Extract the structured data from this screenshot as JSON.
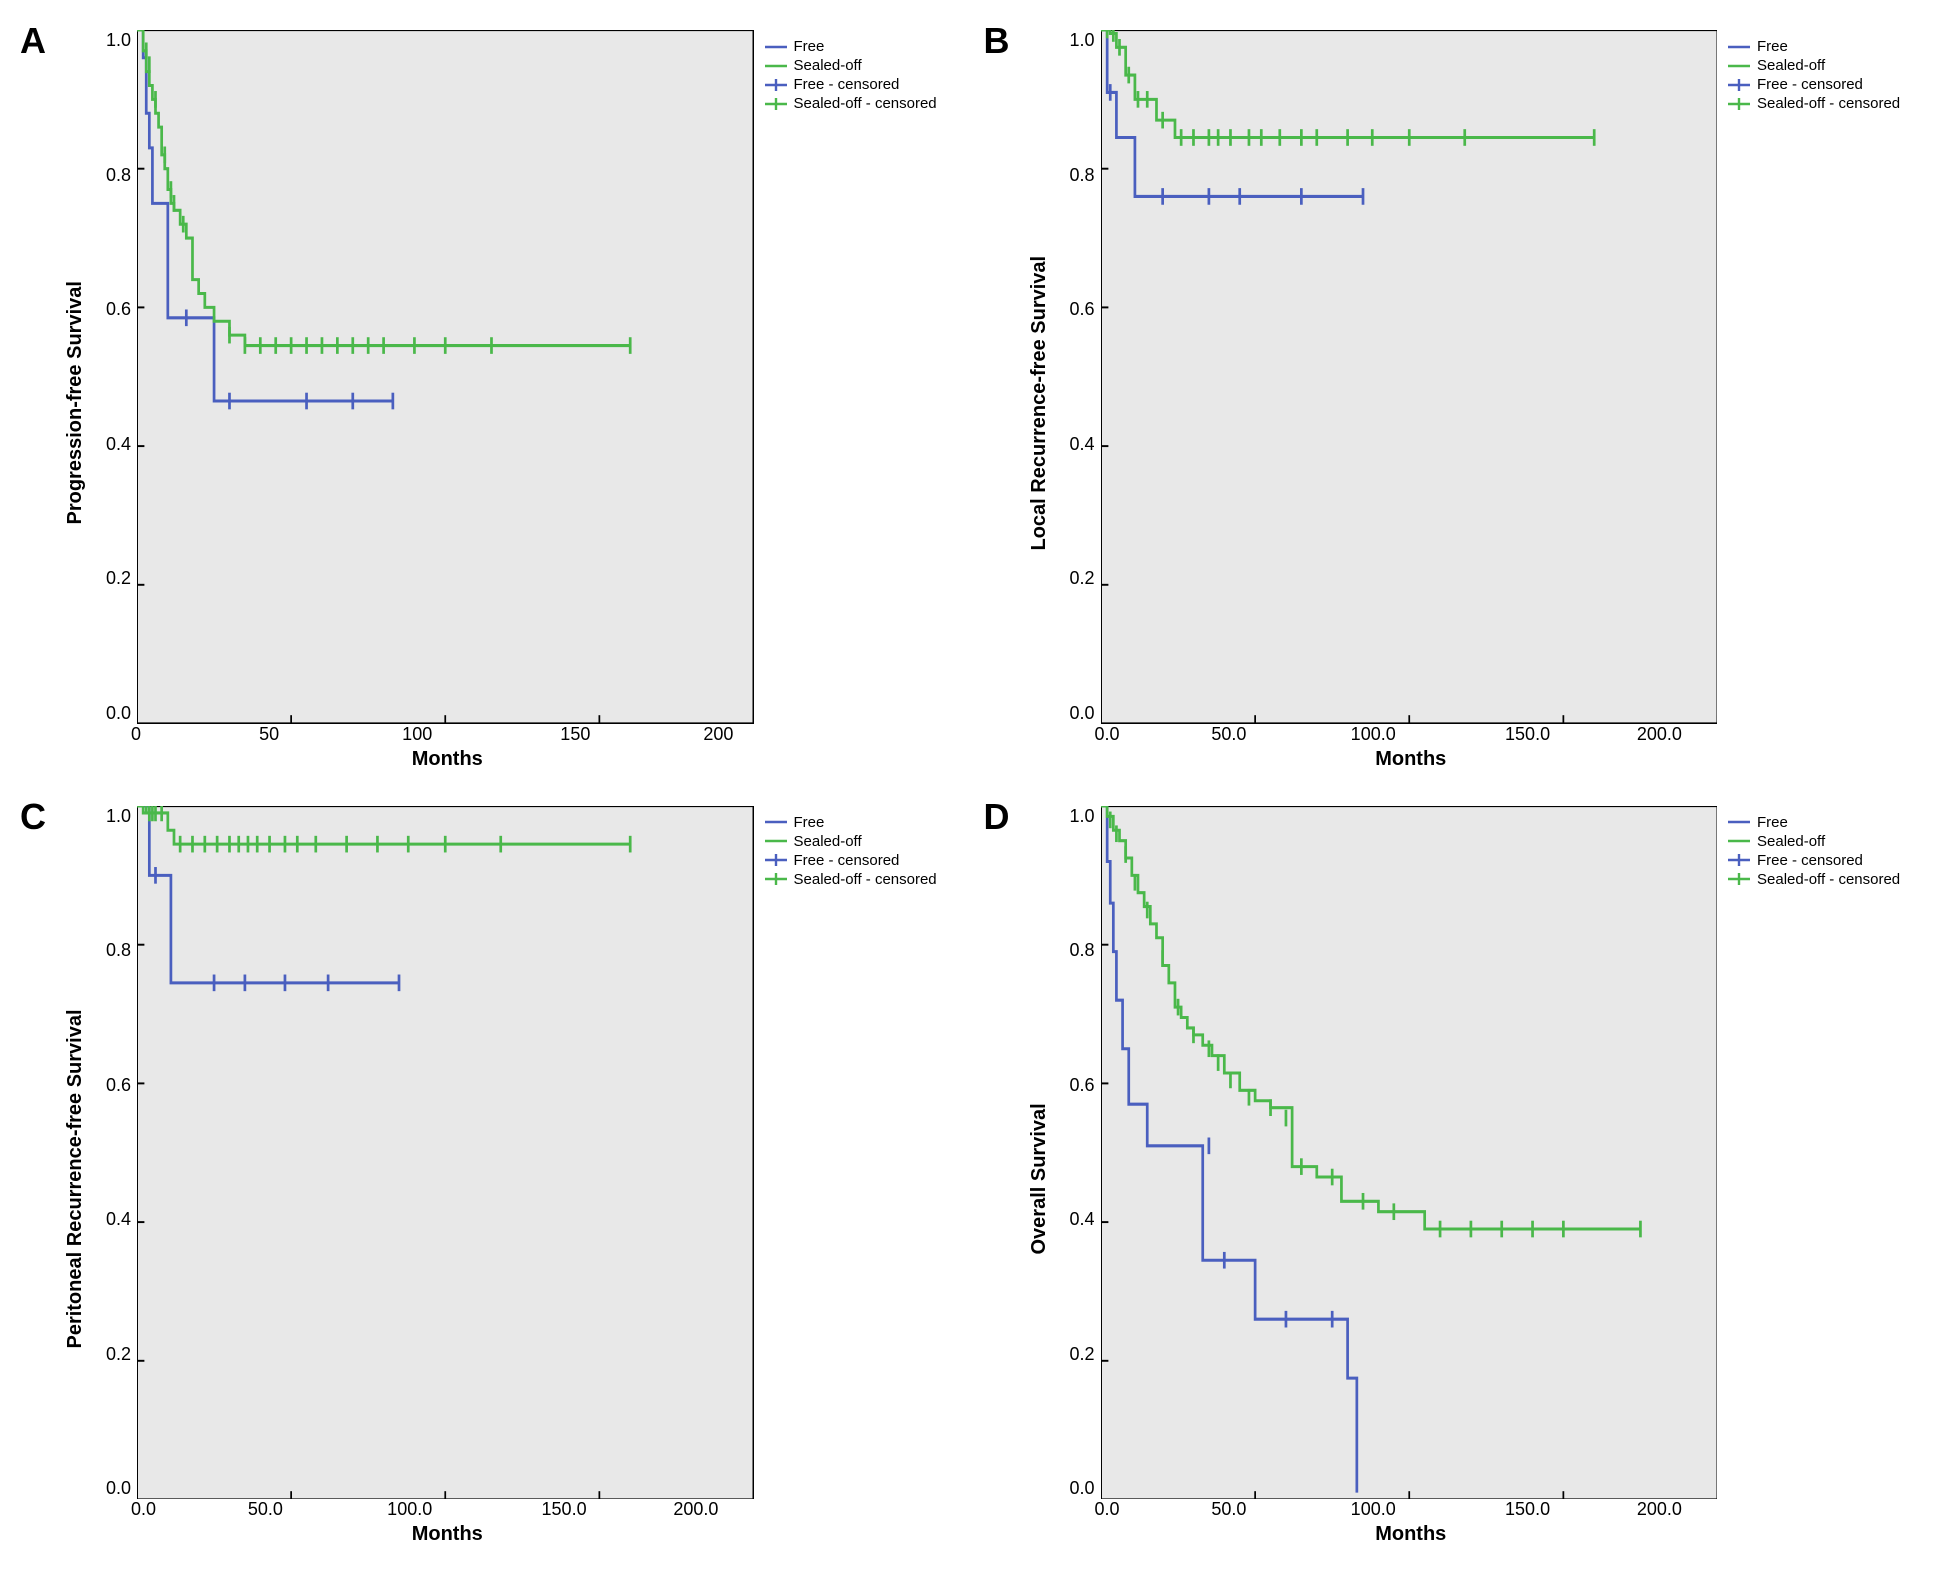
{
  "background_color": "#ffffff",
  "plot_bg": "#e8e8e8",
  "axis_color": "#000000",
  "colors": {
    "free": "#4a5fbf",
    "sealed": "#4ab84a"
  },
  "legend_items": [
    {
      "id": "free",
      "label": "Free",
      "type": "line"
    },
    {
      "id": "sealed",
      "label": "Sealed-off",
      "type": "line"
    },
    {
      "id": "free_c",
      "label": "Free - censored",
      "type": "tick",
      "color_key": "free"
    },
    {
      "id": "sealed_c",
      "label": "Sealed-off - censored",
      "type": "tick",
      "color_key": "sealed"
    }
  ],
  "xlabel": "Months",
  "panels": {
    "A": {
      "letter": "A",
      "ylabel": "Progression-free Survival",
      "xlim": [
        0,
        200
      ],
      "ylim": [
        0.0,
        1.0
      ],
      "xticks": [
        "0",
        "50",
        "100",
        "150",
        "200"
      ],
      "yticks": [
        "1.0",
        "0.8",
        "0.6",
        "0.4",
        "0.2",
        "0.0"
      ],
      "free_steps": [
        [
          0,
          1.0
        ],
        [
          2,
          1.0
        ],
        [
          2,
          0.96
        ],
        [
          3,
          0.88
        ],
        [
          4,
          0.83
        ],
        [
          5,
          0.75
        ],
        [
          10,
          0.75
        ],
        [
          10,
          0.585
        ],
        [
          14,
          0.585
        ],
        [
          14,
          0.585
        ],
        [
          25,
          0.585
        ],
        [
          25,
          0.465
        ],
        [
          83,
          0.465
        ]
      ],
      "sealed_steps": [
        [
          0,
          1.0
        ],
        [
          2,
          0.97
        ],
        [
          3,
          0.94
        ],
        [
          4,
          0.92
        ],
        [
          5,
          0.9
        ],
        [
          6,
          0.88
        ],
        [
          7,
          0.86
        ],
        [
          8,
          0.82
        ],
        [
          9,
          0.8
        ],
        [
          10,
          0.77
        ],
        [
          11,
          0.75
        ],
        [
          12,
          0.74
        ],
        [
          14,
          0.72
        ],
        [
          16,
          0.7
        ],
        [
          18,
          0.64
        ],
        [
          20,
          0.62
        ],
        [
          22,
          0.6
        ],
        [
          25,
          0.58
        ],
        [
          30,
          0.56
        ],
        [
          35,
          0.545
        ],
        [
          160,
          0.545
        ]
      ],
      "free_cens": [
        [
          16,
          0.585
        ],
        [
          30,
          0.465
        ],
        [
          55,
          0.465
        ],
        [
          70,
          0.465
        ],
        [
          83,
          0.465
        ]
      ],
      "sealed_cens": [
        [
          3,
          0.97
        ],
        [
          4,
          0.95
        ],
        [
          6,
          0.9
        ],
        [
          9,
          0.82
        ],
        [
          11,
          0.77
        ],
        [
          12,
          0.75
        ],
        [
          15,
          0.72
        ],
        [
          30,
          0.56
        ],
        [
          35,
          0.545
        ],
        [
          40,
          0.545
        ],
        [
          45,
          0.545
        ],
        [
          50,
          0.545
        ],
        [
          55,
          0.545
        ],
        [
          60,
          0.545
        ],
        [
          65,
          0.545
        ],
        [
          70,
          0.545
        ],
        [
          75,
          0.545
        ],
        [
          80,
          0.545
        ],
        [
          90,
          0.545
        ],
        [
          100,
          0.545
        ],
        [
          115,
          0.545
        ],
        [
          160,
          0.545
        ]
      ]
    },
    "B": {
      "letter": "B",
      "ylabel": "Local Recurrence-free Survival",
      "xlim": [
        0.0,
        200.0
      ],
      "ylim": [
        0.0,
        1.0
      ],
      "xticks": [
        "0.0",
        "50.0",
        "100.0",
        "150.0",
        "200.0"
      ],
      "yticks": [
        "1.0",
        "0.8",
        "0.6",
        "0.4",
        "0.2",
        "0.0"
      ],
      "free_steps": [
        [
          0,
          1.0
        ],
        [
          2,
          1.0
        ],
        [
          2,
          0.91
        ],
        [
          5,
          0.91
        ],
        [
          5,
          0.845
        ],
        [
          11,
          0.845
        ],
        [
          11,
          0.76
        ],
        [
          85,
          0.76
        ]
      ],
      "sealed_steps": [
        [
          0,
          1.0
        ],
        [
          3,
          0.995
        ],
        [
          5,
          0.995
        ],
        [
          5,
          0.975
        ],
        [
          8,
          0.975
        ],
        [
          8,
          0.935
        ],
        [
          11,
          0.935
        ],
        [
          11,
          0.9
        ],
        [
          18,
          0.9
        ],
        [
          18,
          0.87
        ],
        [
          24,
          0.87
        ],
        [
          24,
          0.845
        ],
        [
          160,
          0.845
        ]
      ],
      "free_cens": [
        [
          3,
          0.91
        ],
        [
          20,
          0.76
        ],
        [
          35,
          0.76
        ],
        [
          45,
          0.76
        ],
        [
          65,
          0.76
        ],
        [
          85,
          0.76
        ]
      ],
      "sealed_cens": [
        [
          2,
          1.0
        ],
        [
          4,
          0.995
        ],
        [
          6,
          0.975
        ],
        [
          9,
          0.935
        ],
        [
          12,
          0.9
        ],
        [
          15,
          0.9
        ],
        [
          20,
          0.87
        ],
        [
          26,
          0.845
        ],
        [
          30,
          0.845
        ],
        [
          35,
          0.845
        ],
        [
          38,
          0.845
        ],
        [
          42,
          0.845
        ],
        [
          48,
          0.845
        ],
        [
          52,
          0.845
        ],
        [
          58,
          0.845
        ],
        [
          65,
          0.845
        ],
        [
          70,
          0.845
        ],
        [
          80,
          0.845
        ],
        [
          88,
          0.845
        ],
        [
          100,
          0.845
        ],
        [
          118,
          0.845
        ],
        [
          160,
          0.845
        ]
      ]
    },
    "C": {
      "letter": "C",
      "ylabel": "Peritoneal Recurrence-free Survival",
      "xlim": [
        0.0,
        200.0
      ],
      "ylim": [
        0.0,
        1.0
      ],
      "xticks": [
        "0.0",
        "50.0",
        "100.0",
        "150.0",
        "200.0"
      ],
      "yticks": [
        "1.0",
        "0.8",
        "0.6",
        "0.4",
        "0.2",
        "0.0"
      ],
      "free_steps": [
        [
          0,
          1.0
        ],
        [
          4,
          1.0
        ],
        [
          4,
          0.9
        ],
        [
          11,
          0.9
        ],
        [
          11,
          0.745
        ],
        [
          85,
          0.745
        ]
      ],
      "sealed_steps": [
        [
          0,
          1.0
        ],
        [
          2,
          0.99
        ],
        [
          10,
          0.99
        ],
        [
          10,
          0.965
        ],
        [
          12,
          0.965
        ],
        [
          12,
          0.945
        ],
        [
          160,
          0.945
        ]
      ],
      "free_cens": [
        [
          6,
          0.9
        ],
        [
          25,
          0.745
        ],
        [
          35,
          0.745
        ],
        [
          48,
          0.745
        ],
        [
          62,
          0.745
        ],
        [
          85,
          0.745
        ]
      ],
      "sealed_cens": [
        [
          3,
          1.0
        ],
        [
          4,
          0.99
        ],
        [
          5,
          0.99
        ],
        [
          6,
          0.99
        ],
        [
          8,
          0.99
        ],
        [
          14,
          0.945
        ],
        [
          18,
          0.945
        ],
        [
          22,
          0.945
        ],
        [
          26,
          0.945
        ],
        [
          30,
          0.945
        ],
        [
          33,
          0.945
        ],
        [
          36,
          0.945
        ],
        [
          39,
          0.945
        ],
        [
          43,
          0.945
        ],
        [
          48,
          0.945
        ],
        [
          52,
          0.945
        ],
        [
          58,
          0.945
        ],
        [
          68,
          0.945
        ],
        [
          78,
          0.945
        ],
        [
          88,
          0.945
        ],
        [
          100,
          0.945
        ],
        [
          118,
          0.945
        ],
        [
          160,
          0.945
        ]
      ]
    },
    "D": {
      "letter": "D",
      "ylabel": "Overall Survival",
      "xlim": [
        0.0,
        200.0
      ],
      "ylim": [
        0.0,
        1.0
      ],
      "xticks": [
        "0.0",
        "50.0",
        "100.0",
        "150.0",
        "200.0"
      ],
      "yticks": [
        "1.0",
        "0.8",
        "0.6",
        "0.4",
        "0.2",
        "0.0"
      ],
      "free_steps": [
        [
          0,
          1.0
        ],
        [
          2,
          1.0
        ],
        [
          2,
          0.92
        ],
        [
          3,
          0.86
        ],
        [
          4,
          0.79
        ],
        [
          5,
          0.72
        ],
        [
          7,
          0.65
        ],
        [
          9,
          0.57
        ],
        [
          15,
          0.57
        ],
        [
          15,
          0.51
        ],
        [
          33,
          0.51
        ],
        [
          33,
          0.345
        ],
        [
          50,
          0.345
        ],
        [
          50,
          0.26
        ],
        [
          80,
          0.26
        ],
        [
          80,
          0.175
        ],
        [
          83,
          0.175
        ],
        [
          83,
          0.01
        ]
      ],
      "sealed_steps": [
        [
          0,
          1.0
        ],
        [
          2,
          0.985
        ],
        [
          4,
          0.965
        ],
        [
          6,
          0.95
        ],
        [
          8,
          0.925
        ],
        [
          10,
          0.9
        ],
        [
          12,
          0.875
        ],
        [
          14,
          0.855
        ],
        [
          16,
          0.83
        ],
        [
          18,
          0.81
        ],
        [
          20,
          0.77
        ],
        [
          22,
          0.745
        ],
        [
          24,
          0.71
        ],
        [
          26,
          0.695
        ],
        [
          28,
          0.68
        ],
        [
          30,
          0.67
        ],
        [
          33,
          0.655
        ],
        [
          36,
          0.64
        ],
        [
          40,
          0.615
        ],
        [
          45,
          0.59
        ],
        [
          50,
          0.575
        ],
        [
          55,
          0.565
        ],
        [
          62,
          0.55
        ],
        [
          62,
          0.48
        ],
        [
          70,
          0.48
        ],
        [
          70,
          0.465
        ],
        [
          78,
          0.465
        ],
        [
          78,
          0.43
        ],
        [
          90,
          0.43
        ],
        [
          90,
          0.415
        ],
        [
          105,
          0.415
        ],
        [
          105,
          0.39
        ],
        [
          175,
          0.39
        ]
      ],
      "free_cens": [
        [
          35,
          0.51
        ],
        [
          40,
          0.345
        ],
        [
          60,
          0.26
        ],
        [
          75,
          0.26
        ]
      ],
      "sealed_cens": [
        [
          3,
          0.98
        ],
        [
          5,
          0.96
        ],
        [
          8,
          0.93
        ],
        [
          11,
          0.89
        ],
        [
          15,
          0.85
        ],
        [
          20,
          0.78
        ],
        [
          25,
          0.71
        ],
        [
          30,
          0.67
        ],
        [
          35,
          0.65
        ],
        [
          38,
          0.63
        ],
        [
          42,
          0.605
        ],
        [
          48,
          0.58
        ],
        [
          55,
          0.565
        ],
        [
          60,
          0.55
        ],
        [
          65,
          0.48
        ],
        [
          75,
          0.465
        ],
        [
          85,
          0.43
        ],
        [
          95,
          0.415
        ],
        [
          110,
          0.39
        ],
        [
          120,
          0.39
        ],
        [
          130,
          0.39
        ],
        [
          140,
          0.39
        ],
        [
          150,
          0.39
        ],
        [
          175,
          0.39
        ]
      ]
    }
  }
}
